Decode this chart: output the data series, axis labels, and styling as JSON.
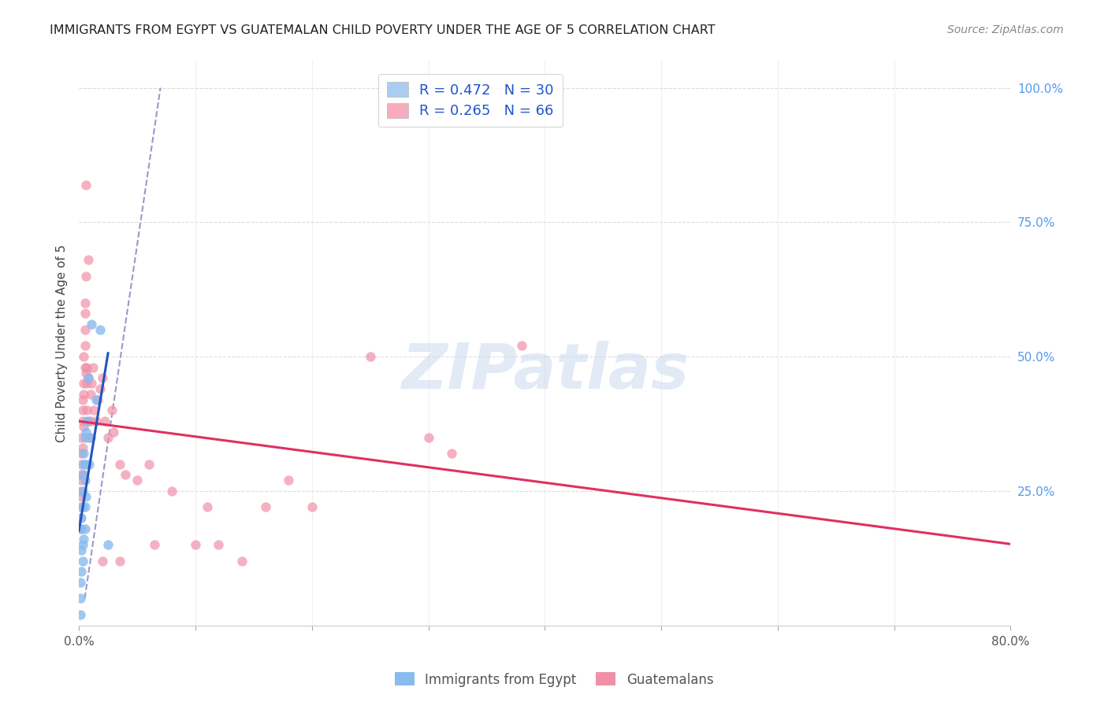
{
  "title": "IMMIGRANTS FROM EGYPT VS GUATEMALAN CHILD POVERTY UNDER THE AGE OF 5 CORRELATION CHART",
  "source": "Source: ZipAtlas.com",
  "ylabel": "Child Poverty Under the Age of 5",
  "legend1_label": "R = 0.472   N = 30",
  "legend2_label": "R = 0.265   N = 66",
  "legend1_color": "#aaccf0",
  "legend2_color": "#f8aabe",
  "scatter_egypt_color": "#88bbee",
  "scatter_guatemala_color": "#f090a8",
  "trendline_egypt_color": "#2255bb",
  "trendline_guatemala_color": "#e03060",
  "dashed_line_color": "#9999cc",
  "watermark_color": "#d0ddf0",
  "background_color": "#ffffff",
  "grid_color": "#dddddd",
  "egypt_x": [
    0.001,
    0.001,
    0.001,
    0.002,
    0.002,
    0.002,
    0.002,
    0.003,
    0.003,
    0.003,
    0.003,
    0.004,
    0.004,
    0.004,
    0.004,
    0.005,
    0.005,
    0.005,
    0.005,
    0.006,
    0.006,
    0.006,
    0.007,
    0.008,
    0.009,
    0.01,
    0.011,
    0.015,
    0.018,
    0.025
  ],
  "egypt_y": [
    0.02,
    0.05,
    0.08,
    0.18,
    0.14,
    0.1,
    0.2,
    0.22,
    0.15,
    0.25,
    0.12,
    0.16,
    0.3,
    0.28,
    0.32,
    0.27,
    0.22,
    0.35,
    0.18,
    0.36,
    0.24,
    0.3,
    0.38,
    0.46,
    0.3,
    0.35,
    0.56,
    0.42,
    0.55,
    0.15
  ],
  "guatemala_x": [
    0.001,
    0.001,
    0.001,
    0.001,
    0.002,
    0.002,
    0.002,
    0.002,
    0.002,
    0.002,
    0.003,
    0.003,
    0.003,
    0.003,
    0.003,
    0.004,
    0.004,
    0.004,
    0.004,
    0.005,
    0.005,
    0.005,
    0.005,
    0.005,
    0.006,
    0.006,
    0.006,
    0.007,
    0.007,
    0.007,
    0.008,
    0.008,
    0.008,
    0.009,
    0.01,
    0.01,
    0.011,
    0.012,
    0.013,
    0.015,
    0.016,
    0.018,
    0.02,
    0.022,
    0.025,
    0.028,
    0.03,
    0.035,
    0.04,
    0.05,
    0.06,
    0.08,
    0.1,
    0.12,
    0.14,
    0.16,
    0.2,
    0.25,
    0.3,
    0.38,
    0.02,
    0.035,
    0.065,
    0.11,
    0.18,
    0.32
  ],
  "guatemala_y": [
    0.22,
    0.2,
    0.18,
    0.25,
    0.28,
    0.3,
    0.24,
    0.35,
    0.27,
    0.32,
    0.28,
    0.33,
    0.4,
    0.38,
    0.42,
    0.37,
    0.45,
    0.43,
    0.5,
    0.48,
    0.55,
    0.52,
    0.6,
    0.58,
    0.47,
    0.65,
    0.82,
    0.45,
    0.48,
    0.4,
    0.38,
    0.68,
    0.46,
    0.35,
    0.38,
    0.43,
    0.45,
    0.48,
    0.4,
    0.38,
    0.42,
    0.44,
    0.46,
    0.38,
    0.35,
    0.4,
    0.36,
    0.3,
    0.28,
    0.27,
    0.3,
    0.25,
    0.15,
    0.15,
    0.12,
    0.22,
    0.22,
    0.5,
    0.35,
    0.52,
    0.12,
    0.12,
    0.15,
    0.22,
    0.27,
    0.32
  ],
  "xlim": [
    0.0,
    0.8
  ],
  "ylim": [
    0.0,
    1.05
  ],
  "right_ytick_values": [
    0.25,
    0.5,
    0.75,
    1.0
  ],
  "right_ytick_labels": [
    "25.0%",
    "50.0%",
    "75.0%",
    "100.0%"
  ],
  "xtick_values": [
    0.0,
    0.1,
    0.2,
    0.3,
    0.4,
    0.5,
    0.6,
    0.7,
    0.8
  ],
  "xtick_labels": [
    "0.0%",
    "",
    "",
    "",
    "",
    "",
    "",
    "",
    "80.0%"
  ]
}
